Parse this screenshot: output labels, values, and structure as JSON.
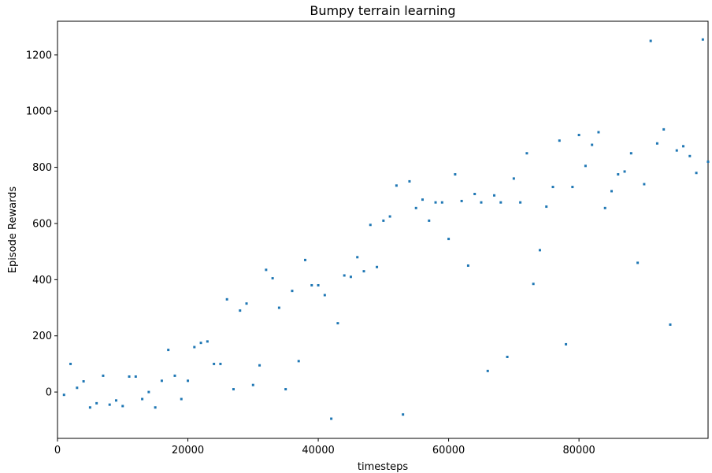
{
  "chart_data": {
    "type": "scatter",
    "title": "Bumpy terrain learning",
    "xlabel": "timesteps",
    "ylabel": "Episode Rewards",
    "xlim": [
      0,
      99800
    ],
    "ylim": [
      -165,
      1320
    ],
    "grid": false,
    "color": "#1f77b4",
    "x_ticks": [
      0,
      20000,
      40000,
      60000,
      80000
    ],
    "x_tick_labels": [
      "0",
      "20000",
      "40000",
      "60000",
      "80000"
    ],
    "y_ticks": [
      0,
      200,
      400,
      600,
      800,
      1000,
      1200
    ],
    "y_tick_labels": [
      "0",
      "200",
      "400",
      "600",
      "800",
      "1000",
      "1200"
    ],
    "points": [
      [
        1000,
        -10
      ],
      [
        2000,
        100
      ],
      [
        3000,
        15
      ],
      [
        4000,
        38
      ],
      [
        5000,
        -55
      ],
      [
        6000,
        -40
      ],
      [
        7000,
        58
      ],
      [
        8000,
        -45
      ],
      [
        9000,
        -30
      ],
      [
        10000,
        -50
      ],
      [
        11000,
        55
      ],
      [
        12000,
        55
      ],
      [
        13000,
        -25
      ],
      [
        14000,
        0
      ],
      [
        15000,
        -55
      ],
      [
        16000,
        40
      ],
      [
        17000,
        150
      ],
      [
        18000,
        58
      ],
      [
        19000,
        -25
      ],
      [
        20000,
        40
      ],
      [
        21000,
        160
      ],
      [
        22000,
        175
      ],
      [
        23000,
        180
      ],
      [
        24000,
        100
      ],
      [
        25000,
        100
      ],
      [
        26000,
        330
      ],
      [
        27000,
        10
      ],
      [
        28000,
        290
      ],
      [
        29000,
        315
      ],
      [
        30000,
        25
      ],
      [
        31000,
        95
      ],
      [
        32000,
        435
      ],
      [
        33000,
        405
      ],
      [
        34000,
        300
      ],
      [
        35000,
        10
      ],
      [
        36000,
        360
      ],
      [
        37000,
        110
      ],
      [
        38000,
        470
      ],
      [
        39000,
        380
      ],
      [
        40000,
        380
      ],
      [
        41000,
        345
      ],
      [
        42000,
        -95
      ],
      [
        43000,
        245
      ],
      [
        44000,
        415
      ],
      [
        45000,
        410
      ],
      [
        46000,
        480
      ],
      [
        47000,
        430
      ],
      [
        48000,
        595
      ],
      [
        49000,
        445
      ],
      [
        50000,
        610
      ],
      [
        51000,
        625
      ],
      [
        52000,
        735
      ],
      [
        53000,
        -80
      ],
      [
        54000,
        750
      ],
      [
        55000,
        655
      ],
      [
        56000,
        685
      ],
      [
        57000,
        610
      ],
      [
        58000,
        675
      ],
      [
        59000,
        675
      ],
      [
        60000,
        545
      ],
      [
        61000,
        775
      ],
      [
        62000,
        680
      ],
      [
        63000,
        450
      ],
      [
        64000,
        705
      ],
      [
        65000,
        675
      ],
      [
        66000,
        75
      ],
      [
        67000,
        700
      ],
      [
        68000,
        675
      ],
      [
        69000,
        125
      ],
      [
        70000,
        760
      ],
      [
        71000,
        675
      ],
      [
        72000,
        850
      ],
      [
        73000,
        385
      ],
      [
        74000,
        505
      ],
      [
        75000,
        660
      ],
      [
        76000,
        730
      ],
      [
        77000,
        895
      ],
      [
        78000,
        170
      ],
      [
        79000,
        730
      ],
      [
        80000,
        915
      ],
      [
        81000,
        805
      ],
      [
        82000,
        880
      ],
      [
        83000,
        925
      ],
      [
        84000,
        655
      ],
      [
        85000,
        715
      ],
      [
        86000,
        775
      ],
      [
        87000,
        785
      ],
      [
        88000,
        850
      ],
      [
        89000,
        460
      ],
      [
        90000,
        740
      ],
      [
        91000,
        1250
      ],
      [
        92000,
        885
      ],
      [
        93000,
        935
      ],
      [
        94000,
        240
      ],
      [
        95000,
        860
      ],
      [
        96000,
        875
      ],
      [
        97000,
        840
      ],
      [
        98000,
        780
      ],
      [
        99000,
        1255
      ],
      [
        99800,
        820
      ]
    ]
  }
}
